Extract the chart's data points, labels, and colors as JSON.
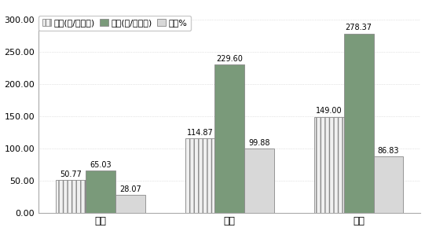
{
  "categories": [
    "七月",
    "八月",
    "九月"
  ],
  "series": {
    "s1": [
      50.77,
      114.87,
      149.0
    ],
    "s2": [
      65.03,
      229.6,
      278.37
    ],
    "s3": [
      28.07,
      99.88,
      86.83
    ]
  },
  "legend_labels": [
    "对照(克/平方米)",
    "封育(克/平方米)",
    "提高%"
  ],
  "bar_colors": [
    "#f0f0f0",
    "#7a9a7a",
    "#d8d8d8"
  ],
  "bar_hatches": [
    "|||",
    "",
    "==="
  ],
  "hatch_colors": [
    "#888888",
    "#888888",
    "#888888"
  ],
  "ylim": [
    0,
    300
  ],
  "yticks": [
    0.0,
    50.0,
    100.0,
    150.0,
    200.0,
    250.0,
    300.0
  ],
  "ytick_labels": [
    "0.00",
    "50.00",
    "100.00",
    "150.00",
    "200.00",
    "250.00",
    "300.00"
  ],
  "bar_width": 0.23,
  "value_fontsize": 7.0,
  "label_fontsize": 9,
  "legend_fontsize": 8,
  "edge_color": "#888888",
  "background_color": "#ffffff",
  "legend_marker_colors": [
    "#ffffff",
    "#7a9a7a",
    "#ffffff"
  ]
}
